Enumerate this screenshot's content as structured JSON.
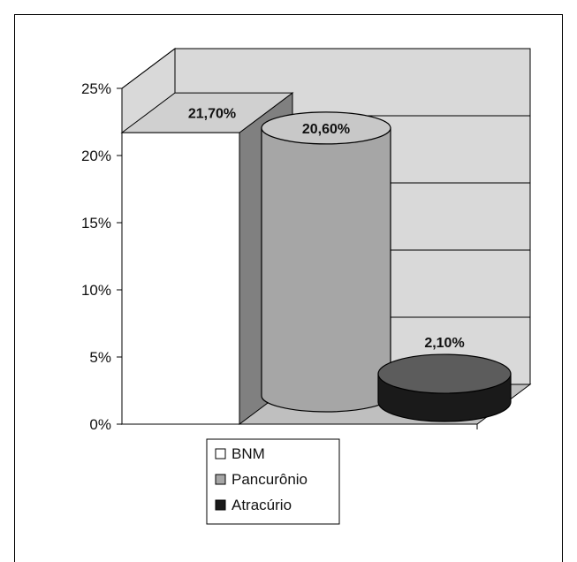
{
  "chart_data": {
    "type": "bar",
    "style": "3d",
    "categories": [
      "BNM",
      "Pancurônio",
      "Atracúrio"
    ],
    "values": [
      21.7,
      20.6,
      2.1
    ],
    "value_labels": [
      "21,70%",
      "20,60%",
      "2,10%"
    ],
    "y_ticks": [
      "0%",
      "5%",
      "10%",
      "15%",
      "20%",
      "25%"
    ],
    "ylim": [
      0,
      25
    ],
    "grid": true,
    "legend_position": "bottom-center",
    "legend": [
      {
        "name": "BNM",
        "color": "#ffffff"
      },
      {
        "name": "Pancurônio",
        "color": "#a6a6a6"
      },
      {
        "name": "Atracúrio",
        "color": "#1a1a1a"
      }
    ],
    "title": "",
    "xlabel": "",
    "ylabel": ""
  },
  "colors": {
    "wall": "#d9d9d9",
    "floor": "#bfbfbf",
    "bar_white_front": "#ffffff",
    "bar_white_top": "#d0d0d0",
    "bar_white_side": "#808080",
    "cylinder_body": "#a6a6a6",
    "cylinder_top": "#c8c8c8",
    "disc_body": "#1a1a1a",
    "disc_top": "#5c5c5c"
  }
}
